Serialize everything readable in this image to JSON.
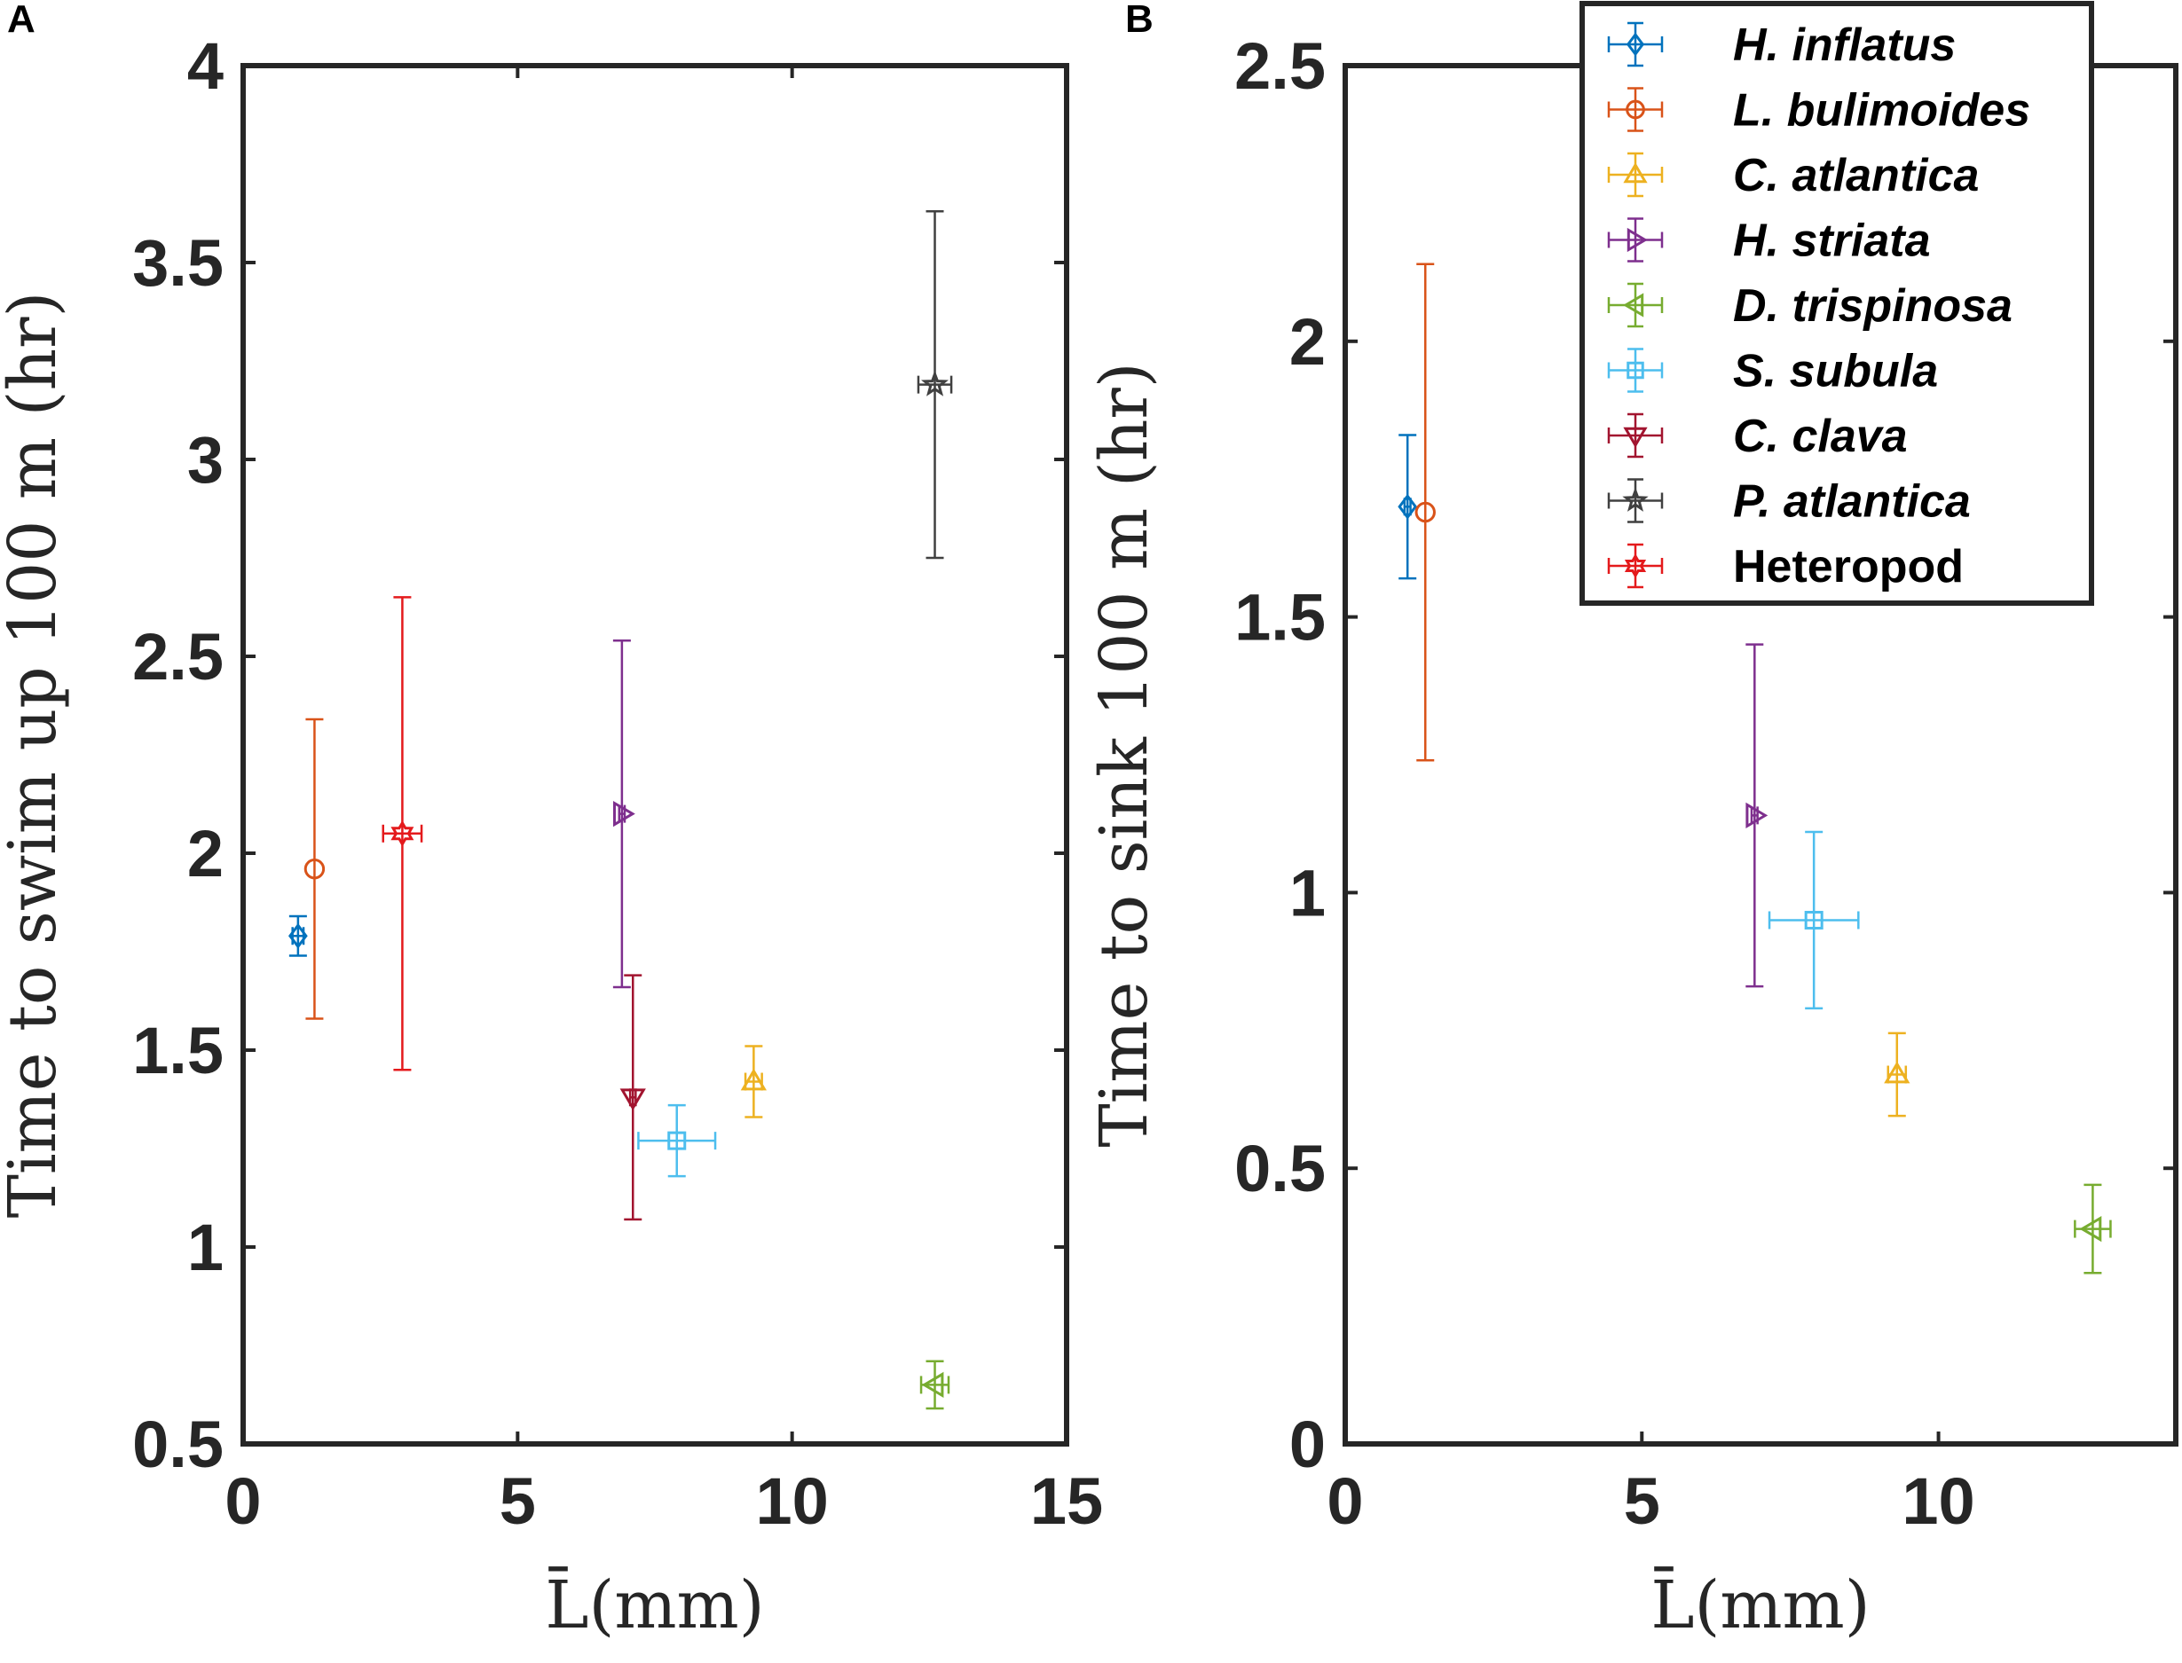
{
  "chart_data": [
    {
      "panel": "A",
      "type": "scatter",
      "xlabel": "L̄(mm)",
      "ylabel": "Time to swim up 100 m (hr)",
      "xlim": [
        0,
        15
      ],
      "ylim": [
        0.5,
        4
      ],
      "xticks": [
        0,
        5,
        10,
        15
      ],
      "yticks": [
        0.5,
        1,
        1.5,
        2,
        2.5,
        3,
        3.5,
        4
      ],
      "xtick_labels": [
        "0",
        "5",
        "10",
        "15"
      ],
      "ytick_labels": [
        "0.5",
        "1",
        "1.5",
        "2",
        "2.5",
        "3",
        "3.5",
        "4"
      ],
      "points": [
        {
          "series": "H. inflatus",
          "x": 1.0,
          "y": 1.79,
          "xerr": 0.1,
          "yerr": 0.05
        },
        {
          "series": "L. bulimoides",
          "x": 1.3,
          "y": 1.96,
          "xerr": 0.0,
          "yerr": 0.38
        },
        {
          "series": "C. atlantica",
          "x": 9.3,
          "y": 1.42,
          "xerr": 0.15,
          "yerr": 0.09
        },
        {
          "series": "H. striata",
          "x": 6.9,
          "y": 2.1,
          "xerr": 0.05,
          "yerr": 0.44
        },
        {
          "series": "D. trispinosa",
          "x": 12.6,
          "y": 0.65,
          "xerr": 0.25,
          "yerr": 0.06
        },
        {
          "series": "S. subula",
          "x": 7.9,
          "y": 1.27,
          "xerr": 0.7,
          "yerr": 0.09
        },
        {
          "series": "C. clava",
          "x": 7.1,
          "y": 1.38,
          "xerr": 0.05,
          "yerr": 0.31
        },
        {
          "series": "P. atlantica",
          "x": 12.6,
          "y": 3.19,
          "xerr": 0.3,
          "yerr": 0.44
        },
        {
          "series": "Heteropod",
          "x": 2.9,
          "y": 2.05,
          "xerr": 0.35,
          "yerr": 0.6
        }
      ]
    },
    {
      "panel": "B",
      "type": "scatter",
      "xlabel": "L̄(mm)",
      "ylabel": "Time to sink 100 m (hr)",
      "xlim": [
        0,
        14
      ],
      "ylim": [
        0,
        2.5
      ],
      "xticks": [
        0,
        5,
        10
      ],
      "yticks": [
        0,
        0.5,
        1,
        1.5,
        2,
        2.5
      ],
      "xtick_labels": [
        "0",
        "5",
        "10"
      ],
      "ytick_labels": [
        "0",
        "0.5",
        "1",
        "1.5",
        "2",
        "2.5"
      ],
      "points": [
        {
          "series": "H. inflatus",
          "x": 1.05,
          "y": 1.7,
          "xerr": 0.05,
          "yerr": 0.13
        },
        {
          "series": "L. bulimoides",
          "x": 1.35,
          "y": 1.69,
          "xerr": 0.0,
          "yerr": 0.45
        },
        {
          "series": "C. atlantica",
          "x": 9.3,
          "y": 0.67,
          "xerr": 0.15,
          "yerr": 0.075
        },
        {
          "series": "H. striata",
          "x": 6.9,
          "y": 1.14,
          "xerr": 0.05,
          "yerr": 0.31
        },
        {
          "series": "D. trispinosa",
          "x": 12.6,
          "y": 0.39,
          "xerr": 0.3,
          "yerr": 0.08
        },
        {
          "series": "S. subula",
          "x": 7.9,
          "y": 0.95,
          "xerr": 0.75,
          "yerr": 0.16
        }
      ]
    }
  ],
  "series": [
    {
      "name": "H. inflatus",
      "marker": "diamond",
      "color": "#0072BD",
      "italic": true
    },
    {
      "name": "L. bulimoides",
      "marker": "circle",
      "color": "#D95319",
      "italic": true
    },
    {
      "name": "C. atlantica",
      "marker": "triangle-up",
      "color": "#EDB120",
      "italic": true
    },
    {
      "name": "H. striata",
      "marker": "triangle-right",
      "color": "#7E2F8E",
      "italic": true
    },
    {
      "name": "D. trispinosa",
      "marker": "triangle-left",
      "color": "#77AC30",
      "italic": true
    },
    {
      "name": "S. subula",
      "marker": "square",
      "color": "#4DBEEE",
      "italic": true
    },
    {
      "name": "C. clava",
      "marker": "triangle-down",
      "color": "#A2142F",
      "italic": true
    },
    {
      "name": "P. atlantica",
      "marker": "pentagram",
      "color": "#404040",
      "italic": true
    },
    {
      "name": "Heteropod",
      "marker": "hexagram",
      "color": "#E41A1C",
      "italic": false
    }
  ],
  "legend": {
    "placement": "top-right"
  }
}
